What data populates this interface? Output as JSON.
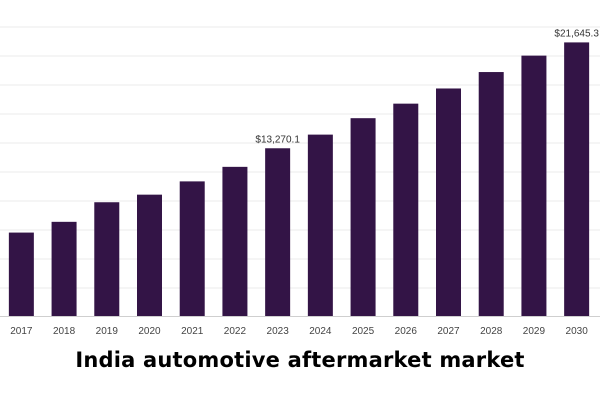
{
  "chart_data": {
    "type": "bar",
    "title": "India automotive aftermarket market",
    "xlabel": "",
    "ylabel": "",
    "categories": [
      "2017",
      "2018",
      "2019",
      "2020",
      "2021",
      "2022",
      "2023",
      "2024",
      "2025",
      "2026",
      "2027",
      "2028",
      "2029",
      "2030"
    ],
    "values": [
      6600,
      7450,
      9000,
      9600,
      10650,
      11800,
      13270.1,
      14350,
      15650,
      16800,
      18000,
      19300,
      20600,
      21645.3
    ],
    "data_labels": [
      {
        "category": "2023",
        "text": "$13,270.1"
      },
      {
        "category": "2030",
        "text": "$21,645.3"
      }
    ],
    "ylim": [
      0,
      25000
    ],
    "grid": true,
    "legend": "none",
    "colors": {
      "bar": "#331446",
      "grid": "#ebebeb",
      "axis": "#cfcfcf",
      "tick_text": "#444444",
      "label_text": "#333333"
    }
  }
}
